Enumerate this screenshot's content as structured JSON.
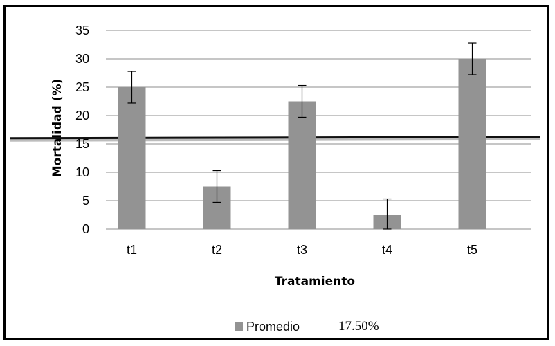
{
  "chart_data": {
    "type": "bar",
    "categories": [
      "t1",
      "t2",
      "t3",
      "t4",
      "t5"
    ],
    "series": [
      {
        "name": "Promedio",
        "values": [
          25,
          7.5,
          22.5,
          2.5,
          30
        ],
        "errors": [
          2.8,
          2.8,
          2.8,
          2.8,
          2.8
        ]
      }
    ],
    "reference_line": {
      "value": 16
    },
    "xlabel": "Tratamiento",
    "ylabel": "Mortalidad (%)",
    "ylim": [
      0,
      35
    ],
    "yticks": [
      0,
      5,
      10,
      15,
      20,
      25,
      30,
      35
    ],
    "grid": true,
    "legend": {
      "position": "bottom",
      "label": "Promedio",
      "note": "17.50%"
    },
    "colors": {
      "bar": "#939393",
      "grid": "#8c8c8c",
      "reference": "#111111"
    }
  }
}
